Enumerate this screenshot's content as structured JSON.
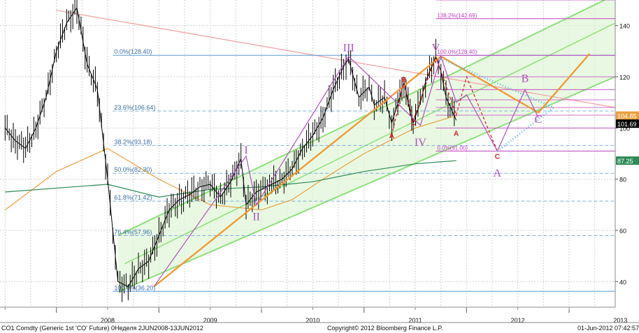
{
  "chart_data": {
    "type": "line",
    "title": "",
    "xlabel": "",
    "ylabel": "",
    "y_axis_position": "right",
    "ylim": [
      30,
      150
    ],
    "y_ticks": [
      40,
      60,
      80,
      100,
      120,
      140
    ],
    "x_tick_labels": [
      "2008",
      "2009",
      "2010",
      "2011",
      "2012",
      "2013"
    ],
    "grid": true,
    "price_markers": [
      {
        "label": "104.85",
        "value": 104.85,
        "color": "#e8a040"
      },
      {
        "label": "101.69",
        "value": 101.69,
        "color": "#000000"
      },
      {
        "label": "87.25",
        "value": 87.25,
        "color": "#2e8b57"
      }
    ],
    "fibonacci_retracement": [
      {
        "label": "0.0%(128.40)",
        "value": 128.4
      },
      {
        "label": "23.6%(106.64)",
        "value": 106.64
      },
      {
        "label": "38.2%(93.18)",
        "value": 93.18
      },
      {
        "label": "50.0%(82.30)",
        "value": 82.3
      },
      {
        "label": "61.8%(71.42)",
        "value": 71.42
      },
      {
        "label": "76.4%(57.96)",
        "value": 57.96
      },
      {
        "label": "100.0%(36.20)",
        "value": 36.2
      }
    ],
    "fibonacci_projection": [
      {
        "label": "138.2%(142.69)",
        "value": 142.69
      },
      {
        "label": "100.0%(128.40)",
        "value": 128.4
      },
      {
        "label": "0.0%(91.00)",
        "value": 91.0
      }
    ],
    "wave_labels": [
      {
        "text": "I",
        "date": 2009.85,
        "value": 90
      },
      {
        "text": "II",
        "date": 2009.95,
        "value": 64
      },
      {
        "text": "III",
        "date": 2010.85,
        "value": 130
      },
      {
        "text": "IV",
        "date": 2011.55,
        "value": 93
      },
      {
        "text": "V",
        "date": 2011.7,
        "value": 130
      },
      {
        "text": "B",
        "date": 2012.57,
        "value": 118
      },
      {
        "text": "C",
        "date": 2012.7,
        "value": 102
      },
      {
        "text": "A",
        "date": 2012.3,
        "value": 81
      }
    ],
    "sub_wave_labels": [
      {
        "text": "B",
        "date": 2011.39,
        "value": 118
      },
      {
        "text": "C",
        "date": 2011.48,
        "value": 101
      },
      {
        "text": "A",
        "date": 2011.27,
        "value": 96
      },
      {
        "text": "A",
        "date": 2011.9,
        "value": 97
      },
      {
        "text": "C",
        "date": 2012.3,
        "value": 88
      }
    ],
    "series": [
      {
        "name": "",
        "type": "ohlc",
        "x": [
          2007.5,
          2007.6,
          2007.7,
          2007.8,
          2007.9,
          2008.0,
          2008.1,
          2008.2,
          2008.3,
          2008.4,
          2008.5,
          2008.55,
          2008.6,
          2008.7,
          2008.8,
          2008.9,
          2009.0,
          2009.1,
          2009.2,
          2009.3,
          2009.4,
          2009.5,
          2009.6,
          2009.7,
          2009.8,
          2009.85,
          2009.95,
          2010.1,
          2010.2,
          2010.3,
          2010.4,
          2010.5,
          2010.6,
          2010.7,
          2010.8,
          2010.85,
          2010.95,
          2011.05,
          2011.1,
          2011.2,
          2011.27,
          2011.35,
          2011.39,
          2011.45,
          2011.48,
          2011.55,
          2011.6,
          2011.7,
          2011.75,
          2011.8,
          2011.9
        ],
        "values": [
          100,
          95,
          92,
          100,
          112,
          130,
          141,
          147,
          125,
          115,
          80,
          60,
          40,
          38,
          45,
          48,
          58,
          68,
          72,
          74,
          77,
          78,
          73,
          79,
          88,
          70,
          75,
          78,
          80,
          84,
          92,
          97,
          104,
          115,
          124,
          127,
          112,
          116,
          109,
          112,
          102,
          112,
          118,
          106,
          102,
          110,
          118,
          128,
          122,
          112,
          103
        ]
      },
      {
        "name": "",
        "color": "#2e8b57",
        "x": [
          2007.5,
          2008.5,
          2009.0,
          2009.5,
          2010.0,
          2010.5,
          2011.0,
          2011.5,
          2011.9
        ],
        "values": [
          75,
          78,
          73,
          76,
          77,
          79,
          83,
          86,
          87.25
        ]
      },
      {
        "name": "",
        "color": "#e8a040",
        "x": [
          2007.5,
          2008.0,
          2008.5,
          2009.0,
          2009.5,
          2010.0,
          2010.3,
          2010.6,
          2011.0,
          2011.5,
          2011.9
        ],
        "values": [
          68,
          83,
          92,
          80,
          70,
          68,
          72,
          80,
          90,
          100,
          104.85
        ]
      }
    ]
  },
  "footer": {
    "left": "CO1 Comdty (Generic 1st 'CO' Future) 0Неделя 2JUN2008-13JUN2012",
    "center": "Copyright© 2012 Bloomberg Finance L.P.",
    "right": "01-Jun-2012 07:42:57"
  }
}
